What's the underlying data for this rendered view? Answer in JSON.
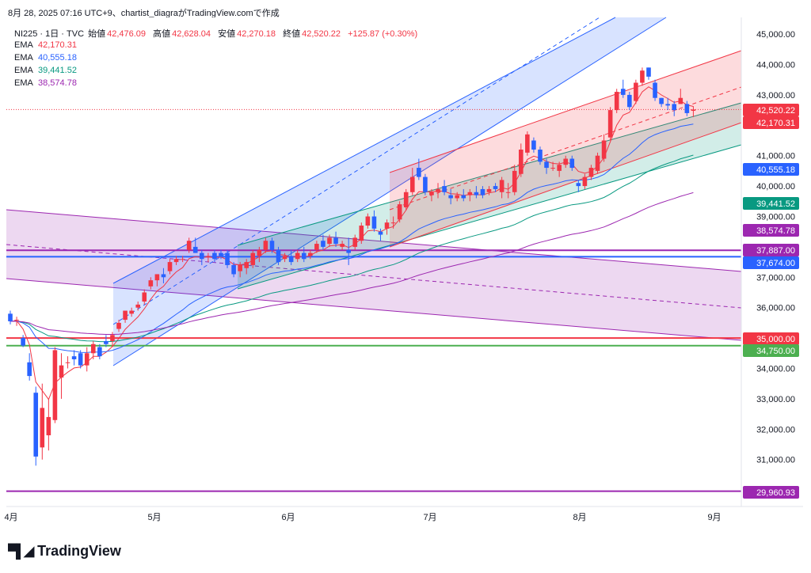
{
  "header": "8月 28, 2025 07:16 UTC+9、chartist_diagraがTradingView.comで作成",
  "legend": {
    "symbol": "NI225 · 1日 · TVC",
    "open_label": "始値",
    "open": "42,476.09",
    "high_label": "高値",
    "high": "42,628.04",
    "low_label": "安値",
    "low": "42,270.18",
    "close_label": "終値",
    "close": "42,520.22",
    "change": "+125.87 (+0.30%)",
    "emas": [
      {
        "label": "EMA",
        "value": "42,170.31",
        "color": "#f23645"
      },
      {
        "label": "EMA",
        "value": "40,555.18",
        "color": "#2962ff"
      },
      {
        "label": "EMA",
        "value": "39,441.52",
        "color": "#089981"
      },
      {
        "label": "EMA",
        "value": "38,574.78",
        "color": "#9c27b0"
      }
    ]
  },
  "logo": "TradingView",
  "chart_data": {
    "type": "candlestick",
    "y_ticks": [
      "45,000.00",
      "44,000.00",
      "43,000.00",
      "41,000.00",
      "40,000.00",
      "39,000.00",
      "37,000.00",
      "36,000.00",
      "34,000.00",
      "33,000.00",
      "32,000.00",
      "31,000.00"
    ],
    "x_ticks": [
      "4月",
      "5月",
      "6月",
      "7月",
      "8月",
      "9月"
    ],
    "price_labels": [
      {
        "value": 42520.22,
        "text": "42,520.22",
        "color": "#f23645"
      },
      {
        "value": 42170.31,
        "text": "42,170.31",
        "color": "#f23645"
      },
      {
        "value": 40555.18,
        "text": "40,555.18",
        "color": "#2962ff"
      },
      {
        "value": 39441.52,
        "text": "39,441.52",
        "color": "#089981"
      },
      {
        "value": 38574.78,
        "text": "38,574.78",
        "color": "#9c27b0"
      },
      {
        "value": 37887.0,
        "text": "37,887.00",
        "color": "#9c27b0"
      },
      {
        "value": 37674.0,
        "text": "37,674.00",
        "color": "#2962ff"
      },
      {
        "value": 35000.0,
        "text": "35,000.00",
        "color": "#f23645"
      },
      {
        "value": 34750.0,
        "text": "34,750.00",
        "color": "#4caf50"
      },
      {
        "value": 29960.93,
        "text": "29,960.93",
        "color": "#9c27b0"
      }
    ],
    "horizontal_lines": [
      {
        "value": 37887,
        "color": "#9c27b0"
      },
      {
        "value": 37674,
        "color": "#2962ff"
      },
      {
        "value": 35000,
        "color": "#f23645"
      },
      {
        "value": 34750,
        "color": "#4caf50"
      },
      {
        "value": 29960.93,
        "color": "#9c27b0"
      }
    ],
    "candles": [
      {
        "o": 35800,
        "h": 35900,
        "l": 35450,
        "c": 35550
      },
      {
        "o": 35600,
        "h": 35700,
        "l": 35400,
        "c": 35600
      },
      {
        "o": 35000,
        "h": 35100,
        "l": 34700,
        "c": 34750
      },
      {
        "o": 34200,
        "h": 34500,
        "l": 33600,
        "c": 33750
      },
      {
        "o": 33200,
        "h": 33400,
        "l": 30800,
        "c": 31100
      },
      {
        "o": 31400,
        "h": 33500,
        "l": 31000,
        "c": 32700
      },
      {
        "o": 31800,
        "h": 33000,
        "l": 31300,
        "c": 32400
      },
      {
        "o": 32300,
        "h": 34700,
        "l": 32200,
        "c": 34600
      },
      {
        "o": 33700,
        "h": 34500,
        "l": 33000,
        "c": 34100
      },
      {
        "o": 34200,
        "h": 34400,
        "l": 34000,
        "c": 34200
      },
      {
        "o": 34400,
        "h": 34600,
        "l": 34100,
        "c": 34300
      },
      {
        "o": 34500,
        "h": 34600,
        "l": 34000,
        "c": 34100
      },
      {
        "o": 34100,
        "h": 34700,
        "l": 33900,
        "c": 34500
      },
      {
        "o": 34500,
        "h": 34900,
        "l": 34300,
        "c": 34800
      },
      {
        "o": 34700,
        "h": 34800,
        "l": 34300,
        "c": 34400
      },
      {
        "o": 34900,
        "h": 35100,
        "l": 34700,
        "c": 34800
      },
      {
        "o": 34900,
        "h": 35200,
        "l": 34700,
        "c": 35100
      },
      {
        "o": 35300,
        "h": 35600,
        "l": 35200,
        "c": 35500
      },
      {
        "o": 35600,
        "h": 35900,
        "l": 35500,
        "c": 35900
      },
      {
        "o": 35800,
        "h": 36000,
        "l": 35700,
        "c": 35900
      },
      {
        "o": 36000,
        "h": 36200,
        "l": 35900,
        "c": 36100
      },
      {
        "o": 36200,
        "h": 36600,
        "l": 36100,
        "c": 36500
      },
      {
        "o": 36700,
        "h": 37000,
        "l": 36600,
        "c": 36900
      },
      {
        "o": 36900,
        "h": 37100,
        "l": 36700,
        "c": 37100
      },
      {
        "o": 37100,
        "h": 37300,
        "l": 36800,
        "c": 37000
      },
      {
        "o": 37200,
        "h": 37600,
        "l": 37100,
        "c": 37500
      },
      {
        "o": 37500,
        "h": 37700,
        "l": 37400,
        "c": 37600
      },
      {
        "o": 37600,
        "h": 37700,
        "l": 37500,
        "c": 37600
      },
      {
        "o": 37900,
        "h": 38300,
        "l": 37800,
        "c": 38200
      },
      {
        "o": 38000,
        "h": 38300,
        "l": 37800,
        "c": 37800
      },
      {
        "o": 37800,
        "h": 37900,
        "l": 37400,
        "c": 37600
      },
      {
        "o": 37700,
        "h": 37800,
        "l": 37500,
        "c": 37700
      },
      {
        "o": 37800,
        "h": 37900,
        "l": 37500,
        "c": 37600
      },
      {
        "o": 37800,
        "h": 37900,
        "l": 37600,
        "c": 37700
      },
      {
        "o": 37800,
        "h": 37900,
        "l": 37300,
        "c": 37400
      },
      {
        "o": 37400,
        "h": 37500,
        "l": 37000,
        "c": 37100
      },
      {
        "o": 37200,
        "h": 37500,
        "l": 37000,
        "c": 37400
      },
      {
        "o": 37300,
        "h": 37600,
        "l": 37100,
        "c": 37500
      },
      {
        "o": 37400,
        "h": 37900,
        "l": 37300,
        "c": 37800
      },
      {
        "o": 37700,
        "h": 38000,
        "l": 37500,
        "c": 37900
      },
      {
        "o": 37900,
        "h": 38300,
        "l": 37800,
        "c": 38200
      },
      {
        "o": 38200,
        "h": 38300,
        "l": 37800,
        "c": 37900
      },
      {
        "o": 37900,
        "h": 38000,
        "l": 37400,
        "c": 37500
      },
      {
        "o": 37600,
        "h": 37800,
        "l": 37500,
        "c": 37700
      },
      {
        "o": 37700,
        "h": 37900,
        "l": 37400,
        "c": 37500
      },
      {
        "o": 37600,
        "h": 37900,
        "l": 37500,
        "c": 37800
      },
      {
        "o": 37800,
        "h": 38000,
        "l": 37500,
        "c": 37600
      },
      {
        "o": 37700,
        "h": 37900,
        "l": 37600,
        "c": 37800
      },
      {
        "o": 37900,
        "h": 38200,
        "l": 37800,
        "c": 38100
      },
      {
        "o": 38200,
        "h": 38400,
        "l": 37900,
        "c": 38000
      },
      {
        "o": 38100,
        "h": 38400,
        "l": 38000,
        "c": 38300
      },
      {
        "o": 38300,
        "h": 38500,
        "l": 38000,
        "c": 38100
      },
      {
        "o": 38000,
        "h": 38200,
        "l": 37900,
        "c": 38100
      },
      {
        "o": 37900,
        "h": 38300,
        "l": 37400,
        "c": 37800
      },
      {
        "o": 38000,
        "h": 38400,
        "l": 37900,
        "c": 38300
      },
      {
        "o": 38200,
        "h": 38800,
        "l": 38100,
        "c": 38700
      },
      {
        "o": 38700,
        "h": 39100,
        "l": 38600,
        "c": 39000
      },
      {
        "o": 39000,
        "h": 39200,
        "l": 38500,
        "c": 38600
      },
      {
        "o": 38500,
        "h": 38600,
        "l": 38200,
        "c": 38400
      },
      {
        "o": 38600,
        "h": 38900,
        "l": 38400,
        "c": 38800
      },
      {
        "o": 38800,
        "h": 39000,
        "l": 38600,
        "c": 38800
      },
      {
        "o": 38900,
        "h": 39500,
        "l": 38800,
        "c": 39400
      },
      {
        "o": 39300,
        "h": 39900,
        "l": 39200,
        "c": 39800
      },
      {
        "o": 39800,
        "h": 40600,
        "l": 39700,
        "c": 40300
      },
      {
        "o": 40600,
        "h": 40900,
        "l": 40200,
        "c": 40300
      },
      {
        "o": 40300,
        "h": 40400,
        "l": 39700,
        "c": 39800
      },
      {
        "o": 39700,
        "h": 39900,
        "l": 39500,
        "c": 39800
      },
      {
        "o": 39800,
        "h": 40100,
        "l": 39600,
        "c": 39900
      },
      {
        "o": 40000,
        "h": 40200,
        "l": 39700,
        "c": 39800
      },
      {
        "o": 39700,
        "h": 39900,
        "l": 39400,
        "c": 39600
      },
      {
        "o": 39600,
        "h": 39800,
        "l": 39500,
        "c": 39700
      },
      {
        "o": 39700,
        "h": 39900,
        "l": 39500,
        "c": 39600
      },
      {
        "o": 39700,
        "h": 39900,
        "l": 39500,
        "c": 39800
      },
      {
        "o": 39800,
        "h": 40000,
        "l": 39600,
        "c": 39700
      },
      {
        "o": 39900,
        "h": 40000,
        "l": 39600,
        "c": 39700
      },
      {
        "o": 39800,
        "h": 40000,
        "l": 39700,
        "c": 39900
      },
      {
        "o": 40000,
        "h": 40100,
        "l": 39800,
        "c": 39900
      },
      {
        "o": 39800,
        "h": 40300,
        "l": 39600,
        "c": 40200
      },
      {
        "o": 39800,
        "h": 40100,
        "l": 39600,
        "c": 39800
      },
      {
        "o": 39800,
        "h": 40700,
        "l": 39700,
        "c": 40500
      },
      {
        "o": 40400,
        "h": 41400,
        "l": 40300,
        "c": 41200
      },
      {
        "o": 41100,
        "h": 41800,
        "l": 41000,
        "c": 41700
      },
      {
        "o": 41500,
        "h": 41600,
        "l": 41100,
        "c": 41200
      },
      {
        "o": 41200,
        "h": 41300,
        "l": 40700,
        "c": 40800
      },
      {
        "o": 40800,
        "h": 40900,
        "l": 40400,
        "c": 40600
      },
      {
        "o": 40600,
        "h": 40800,
        "l": 40500,
        "c": 40600
      },
      {
        "o": 40500,
        "h": 40800,
        "l": 40300,
        "c": 40700
      },
      {
        "o": 40700,
        "h": 41000,
        "l": 40600,
        "c": 40900
      },
      {
        "o": 40900,
        "h": 41000,
        "l": 40500,
        "c": 40600
      },
      {
        "o": 40100,
        "h": 40200,
        "l": 39800,
        "c": 40000
      },
      {
        "o": 40000,
        "h": 40400,
        "l": 39900,
        "c": 40300
      },
      {
        "o": 40300,
        "h": 40700,
        "l": 40200,
        "c": 40600
      },
      {
        "o": 40500,
        "h": 41100,
        "l": 40400,
        "c": 41000
      },
      {
        "o": 40900,
        "h": 41700,
        "l": 40800,
        "c": 41500
      },
      {
        "o": 41600,
        "h": 42600,
        "l": 41500,
        "c": 42500
      },
      {
        "o": 42500,
        "h": 43200,
        "l": 42400,
        "c": 43100
      },
      {
        "o": 43200,
        "h": 43500,
        "l": 42900,
        "c": 43000
      },
      {
        "o": 43000,
        "h": 43100,
        "l": 42500,
        "c": 42600
      },
      {
        "o": 42800,
        "h": 43500,
        "l": 42700,
        "c": 43400
      },
      {
        "o": 43400,
        "h": 43900,
        "l": 43300,
        "c": 43800
      },
      {
        "o": 43900,
        "h": 43900,
        "l": 43500,
        "c": 43600
      },
      {
        "o": 43400,
        "h": 43500,
        "l": 42800,
        "c": 42900
      },
      {
        "o": 42900,
        "h": 42900,
        "l": 42600,
        "c": 42700
      },
      {
        "o": 42700,
        "h": 42900,
        "l": 42500,
        "c": 42650
      },
      {
        "o": 42700,
        "h": 42800,
        "l": 42300,
        "c": 42500
      },
      {
        "o": 42700,
        "h": 43200,
        "l": 42700,
        "c": 42900
      },
      {
        "o": 42700,
        "h": 42800,
        "l": 42300,
        "c": 42400
      },
      {
        "o": 42476.09,
        "h": 42628.04,
        "l": 42270.18,
        "c": 42520.22
      }
    ]
  }
}
